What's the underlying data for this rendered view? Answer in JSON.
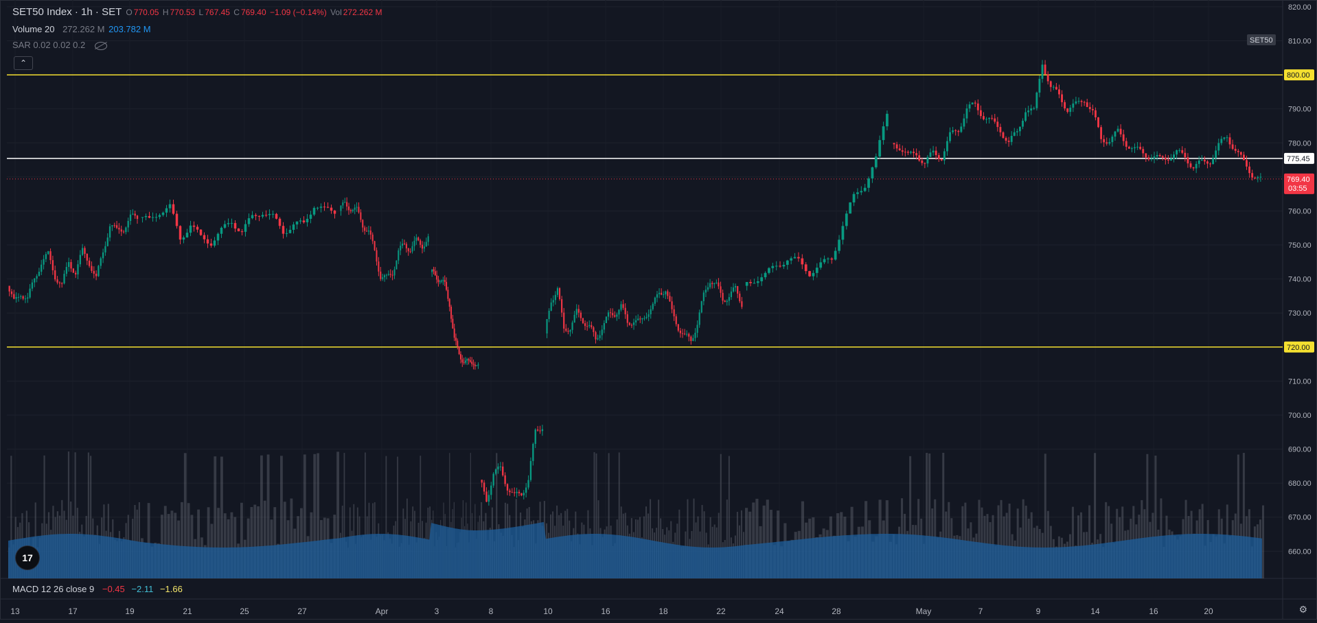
{
  "header": {
    "symbol": "SET50 Index · 1h · SET",
    "o_label": "O",
    "o_value": "770.05",
    "h_label": "H",
    "h_value": "770.53",
    "l_label": "L",
    "l_value": "767.45",
    "c_label": "C",
    "c_value": "769.40",
    "change": "−1.09 (−0.14%)",
    "vol_label": "Vol",
    "vol_value": "272.262 M"
  },
  "volume_legend": {
    "label": "Volume 20",
    "value": "272.262 M",
    "ma_value": "203.782 M"
  },
  "sar_legend": {
    "label": "SAR 0.02 0.02 0.2"
  },
  "macd_legend": {
    "label": "MACD 12 26 close 9",
    "v1": "−0.45",
    "v2": "−2.11",
    "v3": "−1.66"
  },
  "collapse_glyph": "⌃",
  "logo_text": "17",
  "settings_glyph": "⚙",
  "colors": {
    "background": "#131722",
    "up": "#089981",
    "down": "#f23645",
    "hline": "#f5e030",
    "volume_ma": "#1e5f9c"
  },
  "chart_data": {
    "type": "candlestick",
    "symbol_label": "SET50",
    "ylim": [
      652,
      822
    ],
    "y_ticks": [
      "820.00",
      "810.00",
      "800.00",
      "790.00",
      "780.00",
      "770.00",
      "760.00",
      "750.00",
      "740.00",
      "730.00",
      "720.00",
      "710.00",
      "700.00",
      "690.00",
      "680.00",
      "670.00",
      "660.00"
    ],
    "x_ticks": [
      "13",
      "17",
      "19",
      "21",
      "25",
      "27",
      "Apr",
      "3",
      "8",
      "10",
      "16",
      "18",
      "22",
      "24",
      "28",
      "May",
      "7",
      "9",
      "14",
      "16",
      "20"
    ],
    "horizontal_lines": [
      {
        "value": 800.0,
        "label": "800.00",
        "style": "yellow"
      },
      {
        "value": 775.45,
        "label": "775.45",
        "style": "white"
      },
      {
        "value": 720.0,
        "label": "720.00",
        "style": "yellow"
      }
    ],
    "last_price": {
      "value": 769.4,
      "label": "769.40",
      "countdown": "03:55"
    },
    "segments": [
      {
        "label": "13",
        "path": [
          738,
          733,
          736,
          734,
          740,
          745,
          747,
          741,
          738,
          745,
          742,
          748,
          745,
          740,
          748,
          756,
          754,
          755,
          758,
          758
        ]
      },
      {
        "label": "19",
        "path": [
          758,
          757,
          760,
          761,
          752,
          756,
          752,
          751,
          754,
          757,
          754,
          758,
          760,
          758,
          754,
          756,
          756,
          762,
          760,
          760
        ]
      },
      {
        "label": "27",
        "path": [
          760,
          762,
          761,
          760,
          756,
          754,
          748,
          741,
          740,
          742,
          748,
          750,
          749,
          751,
          750,
          752
        ]
      },
      {
        "label": "3",
        "path": [
          742,
          741,
          740,
          738,
          733,
          722,
          718,
          716,
          715,
          716,
          714
        ]
      },
      {
        "label": "8",
        "path": [
          681,
          675,
          683,
          684,
          679,
          676,
          677,
          681,
          695,
          697
        ]
      },
      {
        "label": "10",
        "path": [
          724,
          734,
          737,
          725,
          726,
          730,
          728,
          726,
          722,
          726,
          729,
          730,
          732,
          727,
          728,
          727,
          730,
          732,
          736,
          737,
          730,
          726,
          723,
          722,
          727,
          735,
          740,
          738,
          734,
          735,
          737,
          733
        ]
      },
      {
        "label": "24",
        "path": [
          738,
          740,
          741,
          744,
          746,
          745,
          742,
          744,
          746,
          756,
          764,
          768,
          775,
          789
        ]
      },
      {
        "label": "May",
        "path": [
          780,
          779,
          776,
          777,
          774,
          777,
          776,
          782,
          784,
          790,
          791,
          788,
          786,
          784,
          780,
          783,
          790,
          789,
          804,
          796,
          794,
          790,
          791,
          793,
          789,
          781,
          781,
          783,
          780,
          778,
          777,
          776,
          775,
          776,
          777,
          776,
          773,
          774,
          775,
          779,
          782,
          778,
          774,
          771,
          769
        ]
      }
    ],
    "volume_bars_max": 10,
    "volume_ma_level": 0.3
  }
}
